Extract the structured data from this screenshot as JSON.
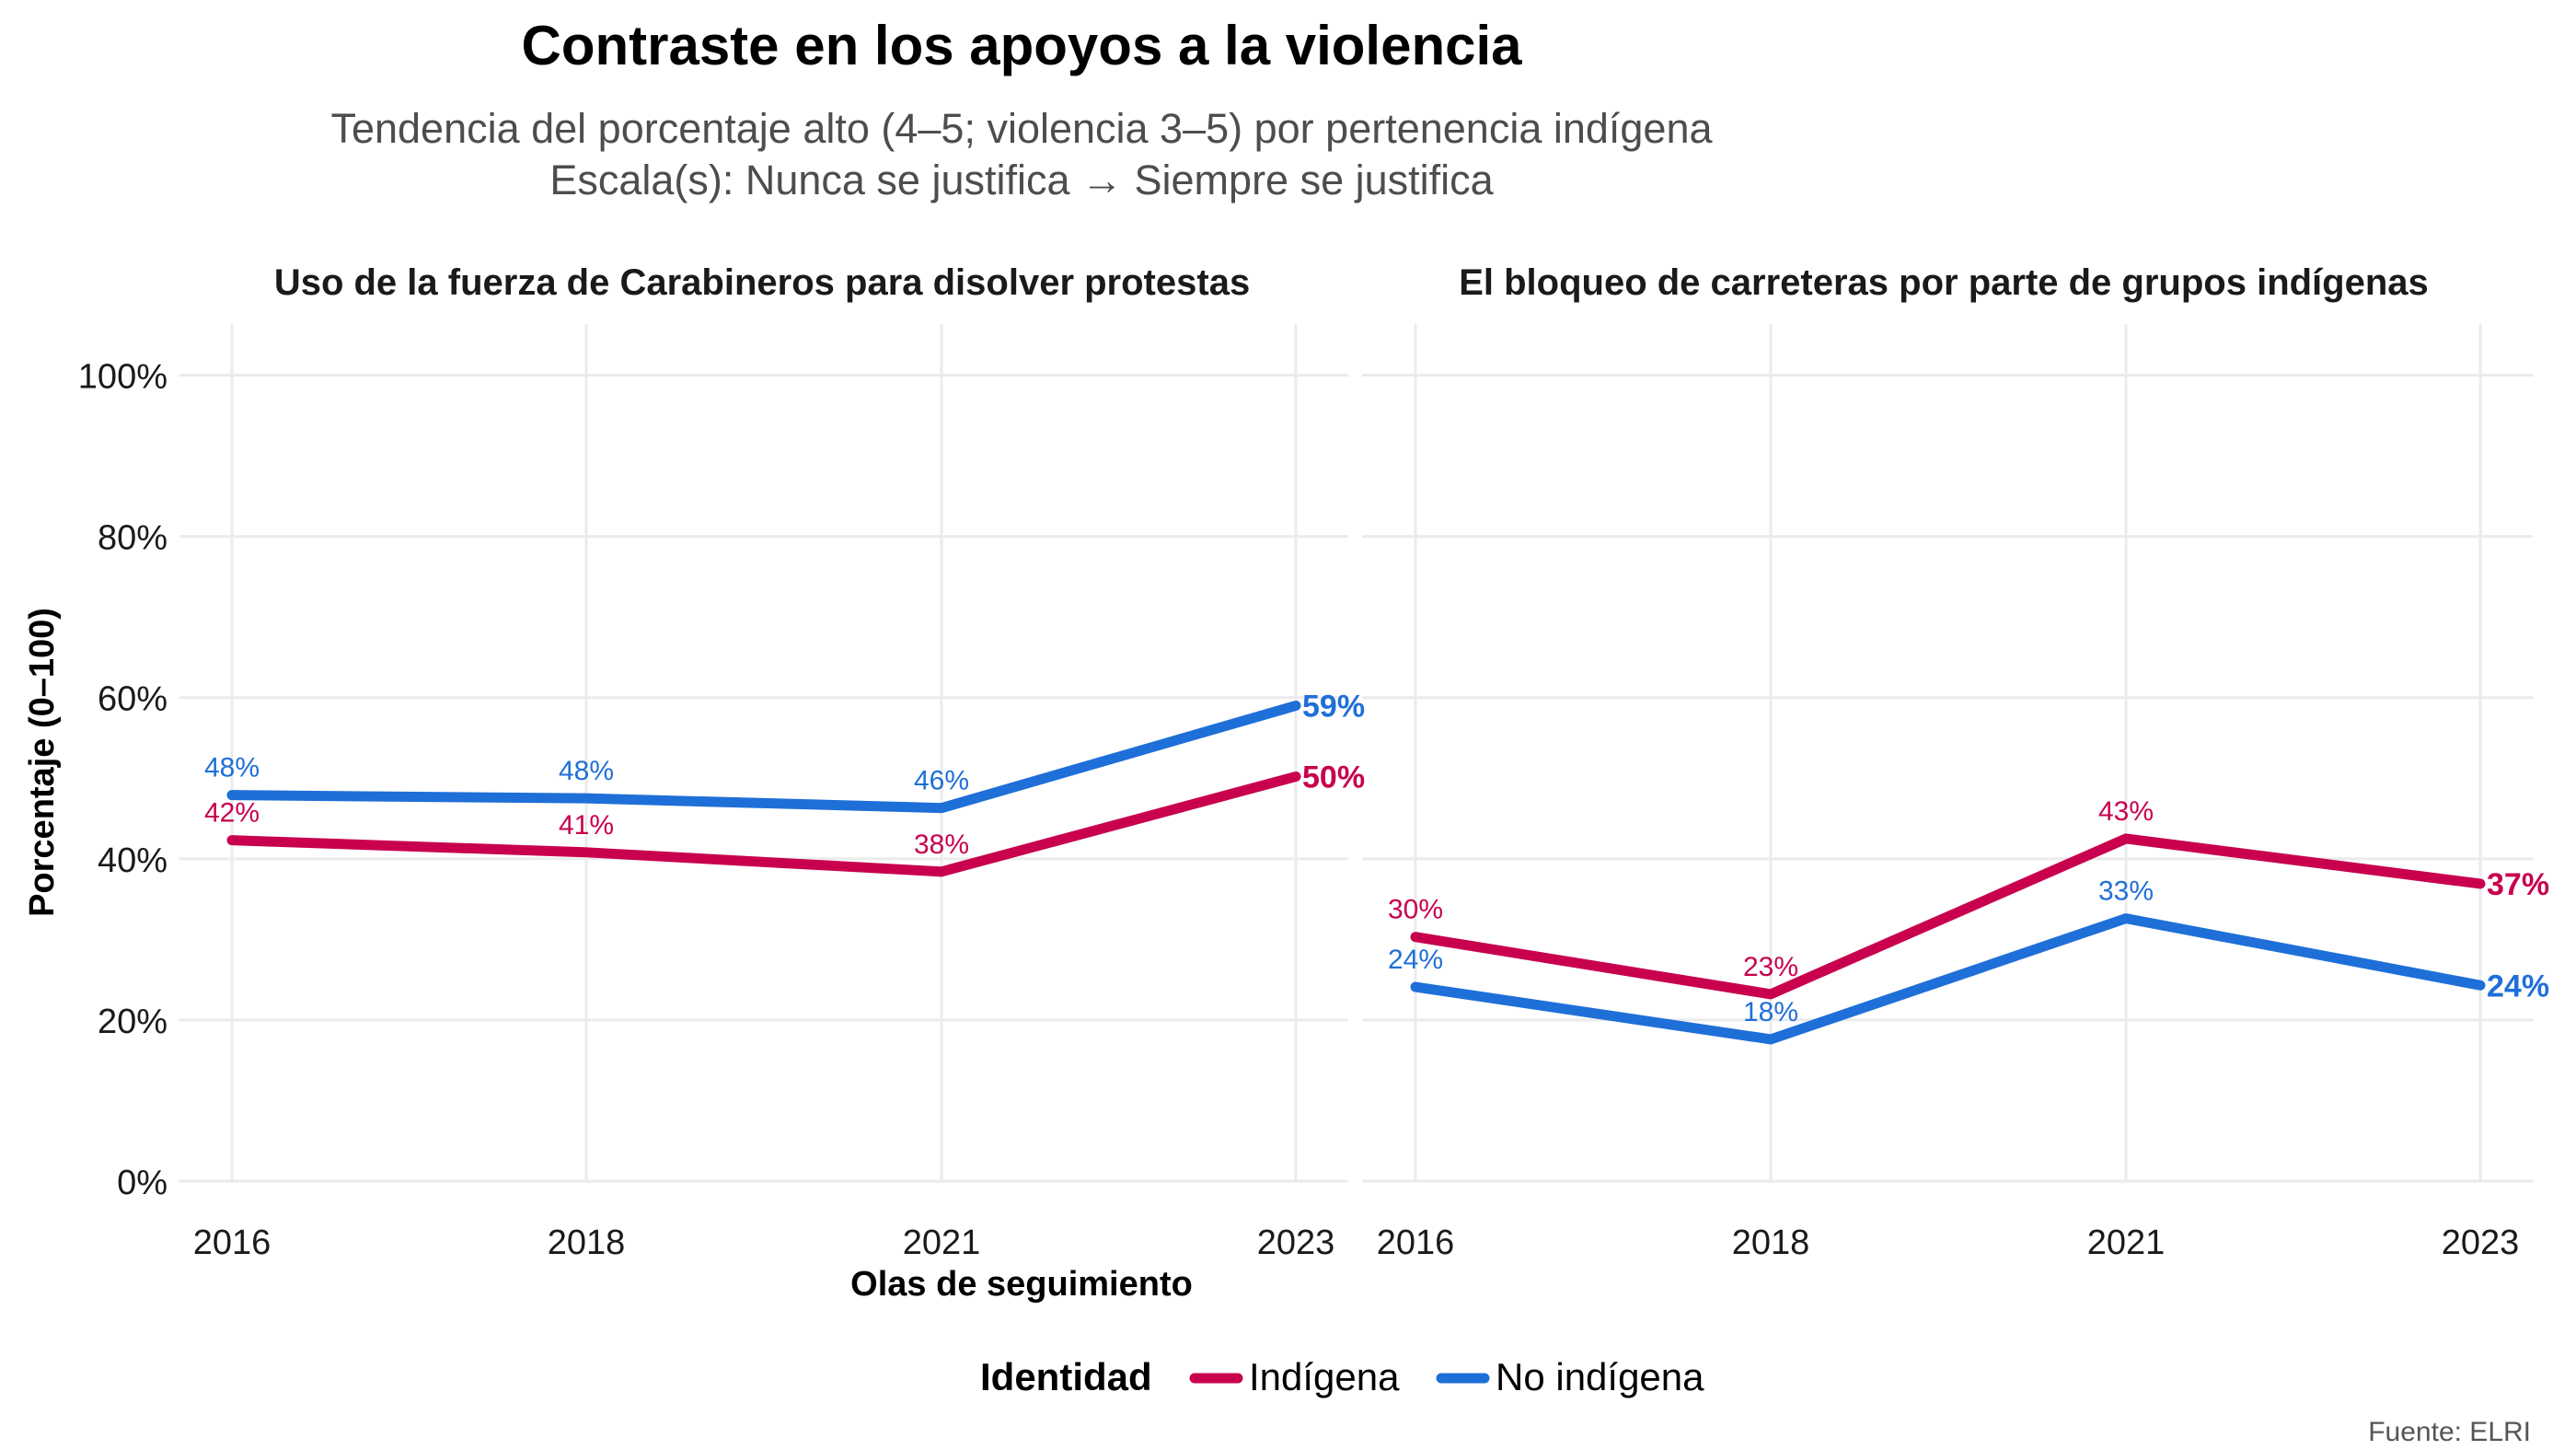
{
  "title": "Contraste en los apoyos a la violencia",
  "subtitle_lines": [
    "Tendencia del porcentaje alto (4–5; violencia 3–5) por pertenencia indígena",
    "Escala(s): Nunca se justifica → Siempre se justifica"
  ],
  "ylabel": "Porcentaje (0–100)",
  "xlabel": "Olas de seguimiento",
  "legend": {
    "title": "Identidad",
    "items": [
      {
        "label": "Indígena",
        "color": "#c8004e"
      },
      {
        "label": "No indígena",
        "color": "#1f6fd8"
      }
    ]
  },
  "caption": "Fuente: ELRI",
  "chart_data": [
    {
      "type": "line",
      "title": "Uso de la fuerza de Carabineros para disolver protestas",
      "x": [
        "2016",
        "2018",
        "2021",
        "2023"
      ],
      "ylim": [
        0,
        110
      ],
      "yticks": [
        0,
        20,
        40,
        60,
        80,
        100
      ],
      "ytick_labels": [
        "0%",
        "20%",
        "40%",
        "60%",
        "80%",
        "100%"
      ],
      "grid": true,
      "series": [
        {
          "name": "Indígena",
          "color": "#c8004e",
          "values": [
            42.3,
            40.8,
            38.4,
            50.2
          ],
          "labels": [
            "42%",
            "41%",
            "38%",
            "50%"
          ]
        },
        {
          "name": "No indígena",
          "color": "#1f6fd8",
          "values": [
            47.9,
            47.5,
            46.3,
            59.0
          ],
          "labels": [
            "48%",
            "48%",
            "46%",
            "59%"
          ]
        }
      ]
    },
    {
      "type": "line",
      "title": "El bloqueo de carreteras por parte de grupos indígenas",
      "x": [
        "2016",
        "2018",
        "2021",
        "2023"
      ],
      "ylim": [
        0,
        110
      ],
      "yticks": [
        0,
        20,
        40,
        60,
        80,
        100
      ],
      "grid": true,
      "series": [
        {
          "name": "Indígena",
          "color": "#c8004e",
          "values": [
            30.3,
            23.2,
            42.5,
            36.9
          ],
          "labels": [
            "30%",
            "23%",
            "43%",
            "37%"
          ]
        },
        {
          "name": "No indígena",
          "color": "#1f6fd8",
          "values": [
            24.1,
            17.6,
            32.6,
            24.3
          ],
          "labels": [
            "24%",
            "18%",
            "33%",
            "24%"
          ]
        }
      ]
    }
  ]
}
